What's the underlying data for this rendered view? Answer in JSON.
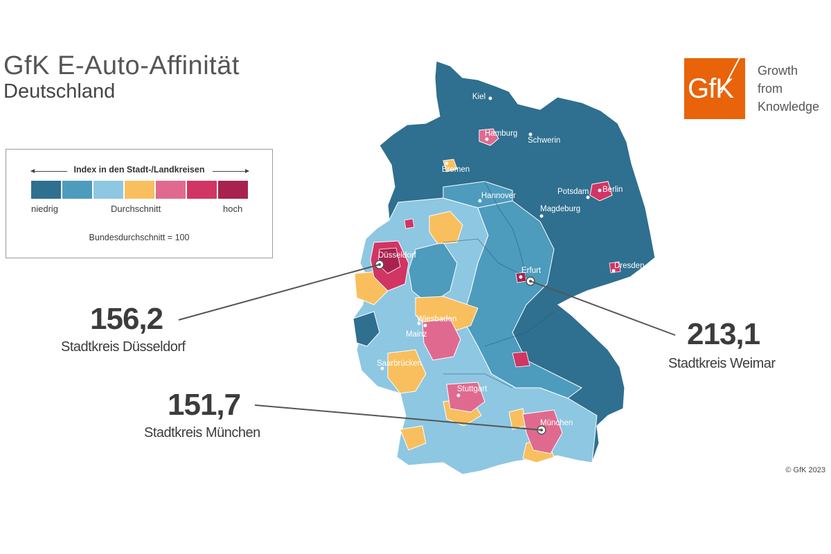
{
  "header": {
    "title": "GfK E-Auto-Affinität",
    "subtitle": "Deutschland"
  },
  "legend": {
    "heading": "Index in den Stadt-/Landkreisen",
    "colors": [
      "#2f6f8f",
      "#4d9bbd",
      "#8ec7e2",
      "#f9bf5e",
      "#e06a8f",
      "#d13563",
      "#a8224f"
    ],
    "label_low": "niedrig",
    "label_mid": "Durchschnitt",
    "label_high": "hoch",
    "note": "Bundesdurchschnitt = 100"
  },
  "logo": {
    "text": "GfK",
    "tagline": [
      "Growth",
      "from",
      "Knowledge"
    ],
    "color": "#e8630a"
  },
  "cities": [
    "Kiel",
    "Hamburg",
    "Schwerin",
    "Bremen",
    "Hannover",
    "Potsdam",
    "Berlin",
    "Magdeburg",
    "Düsseldorf",
    "Dresden",
    "Erfurt",
    "Wiesbaden",
    "Mainz",
    "Saarbrücken",
    "Stuttgart",
    "München"
  ],
  "callouts": [
    {
      "value": "156,2",
      "caption": "Stadtkreis Düsseldorf"
    },
    {
      "value": "213,1",
      "caption": "Stadtkreis Weimar"
    },
    {
      "value": "151,7",
      "caption": "Stadtkreis München"
    }
  ],
  "copyright": "© GfK 2023"
}
